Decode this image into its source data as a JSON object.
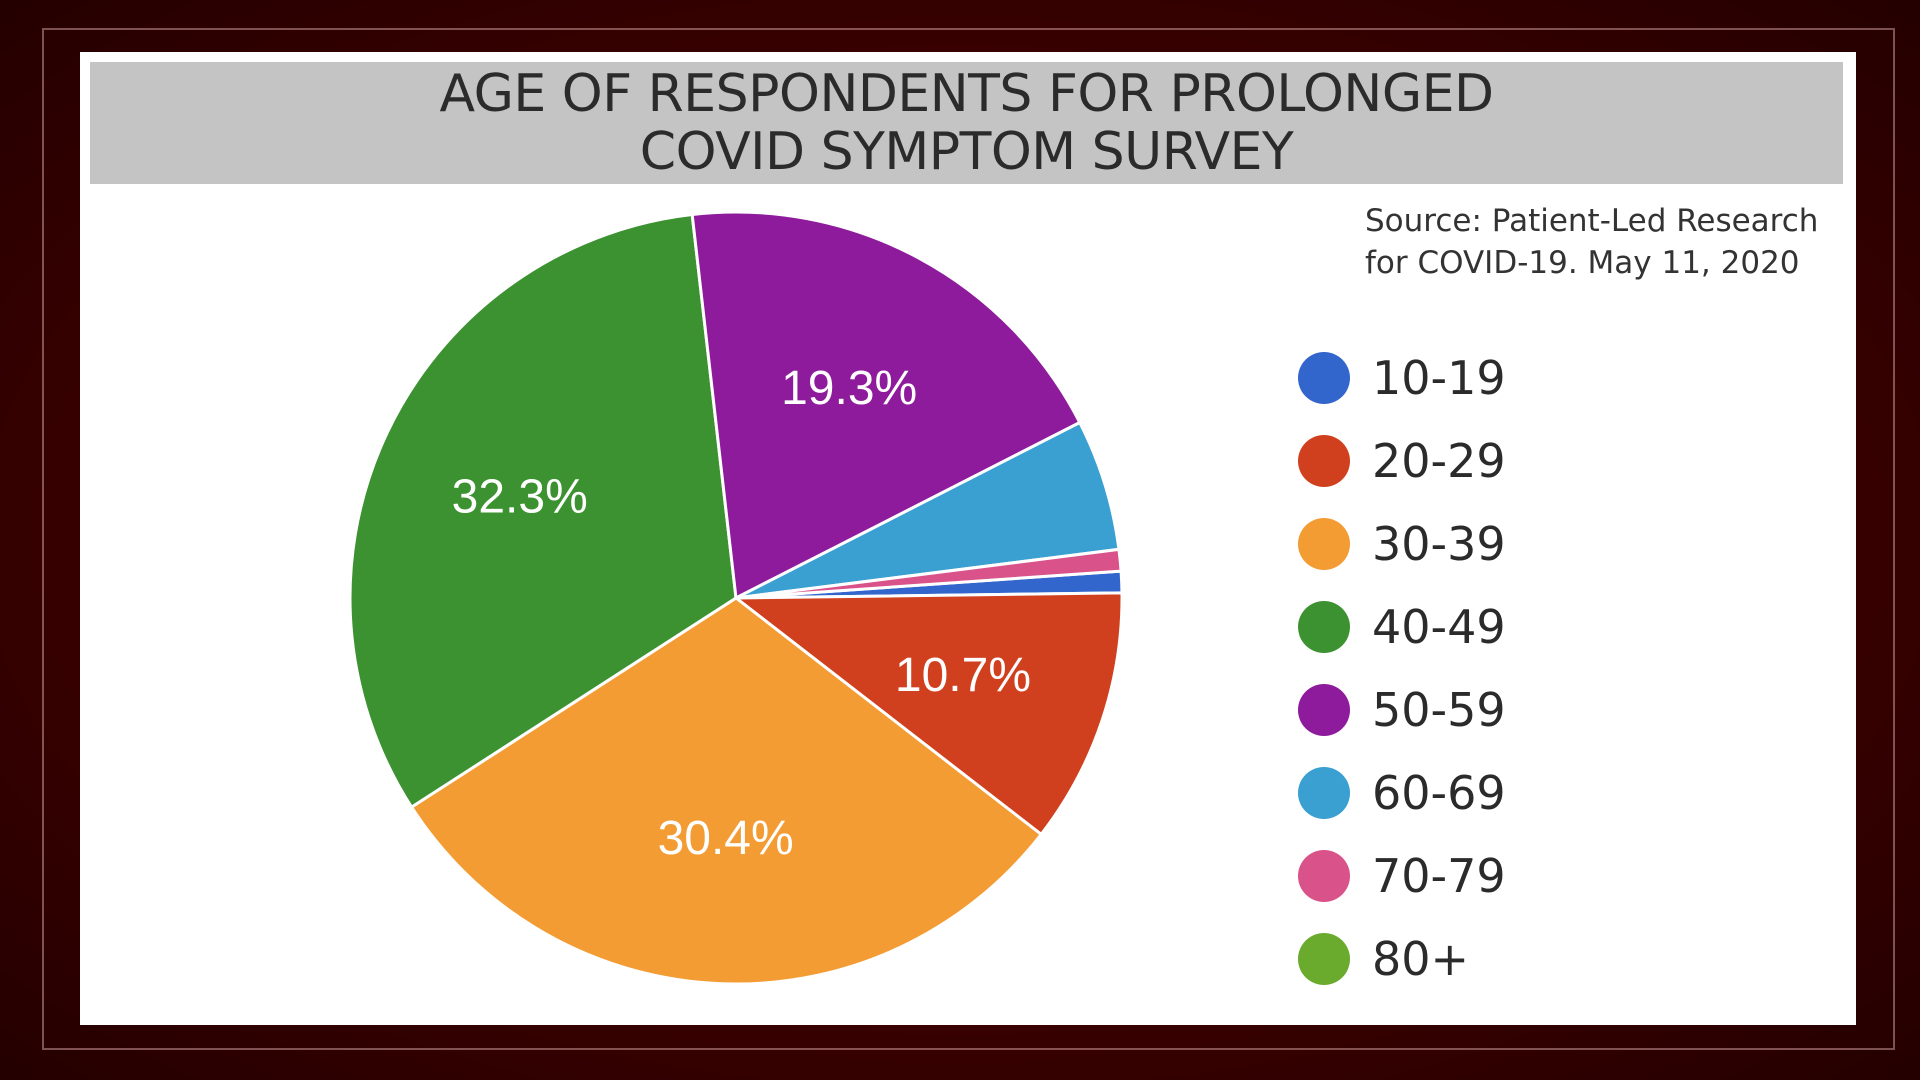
{
  "chart_data": {
    "type": "pie",
    "title_lines": [
      "AGE OF RESPONDENTS FOR PROLONGED",
      "COVID SYMPTOM SURVEY"
    ],
    "source_lines": [
      "Source: Patient-Led Research",
      "for COVID-19. May 11, 2020"
    ],
    "legend_position": "right",
    "slices": [
      {
        "label": "10-19",
        "value": 0.9,
        "color": "#3366cc",
        "data_label": ""
      },
      {
        "label": "20-29",
        "value": 10.7,
        "color": "#d1401e",
        "data_label": "10.7%"
      },
      {
        "label": "30-39",
        "value": 30.4,
        "color": "#f39c34",
        "data_label": "30.4%"
      },
      {
        "label": "40-49",
        "value": 32.3,
        "color": "#3c9230",
        "data_label": "32.3%"
      },
      {
        "label": "50-59",
        "value": 19.3,
        "color": "#8e1b9c",
        "data_label": "19.3%"
      },
      {
        "label": "60-69",
        "value": 5.5,
        "color": "#3a9fd1",
        "data_label": ""
      },
      {
        "label": "70-79",
        "value": 0.9,
        "color": "#d9528a",
        "data_label": ""
      },
      {
        "label": "80+",
        "value": 0.0,
        "color": "#6aab2e",
        "data_label": ""
      }
    ]
  }
}
